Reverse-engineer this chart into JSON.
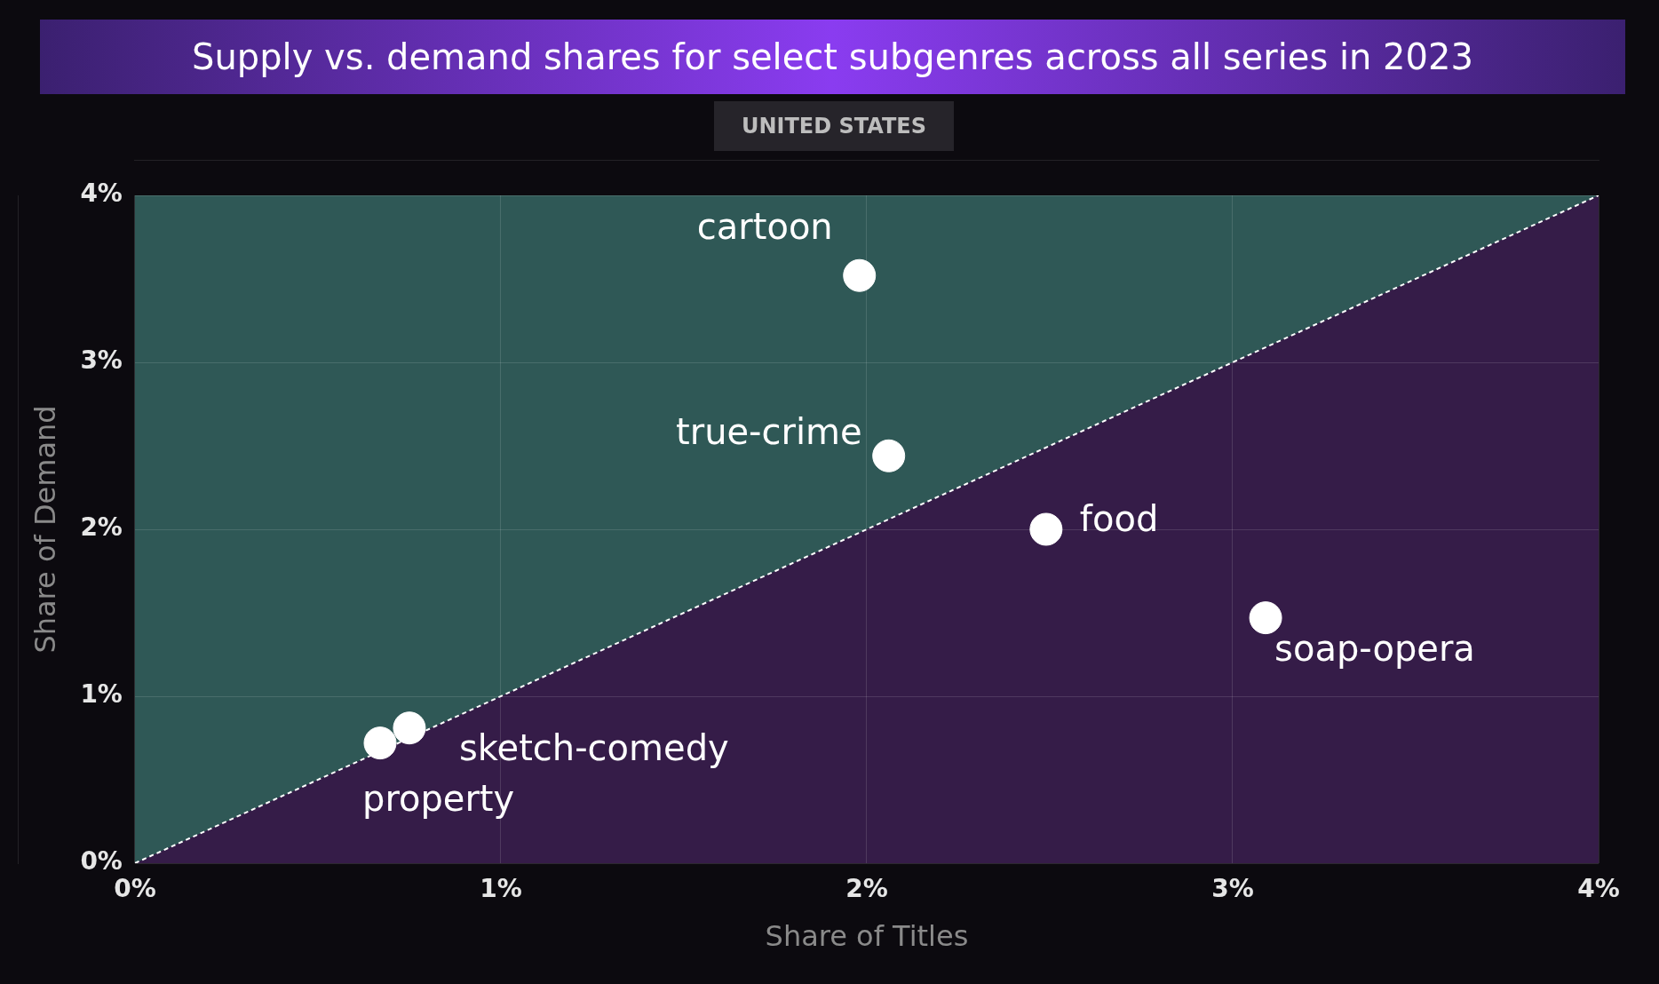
{
  "chart_data": {
    "type": "scatter",
    "title": "Supply vs. demand shares for select subgenres across all series in 2023",
    "subtitle": "UNITED STATES",
    "xlabel": "Share of Titles",
    "ylabel": "Share of Demand",
    "xlim": [
      0,
      4
    ],
    "ylim": [
      0,
      4
    ],
    "xticks": [
      {
        "value": 0,
        "label": "0%"
      },
      {
        "value": 1,
        "label": "1%"
      },
      {
        "value": 2,
        "label": "2%"
      },
      {
        "value": 3,
        "label": "3%"
      },
      {
        "value": 4,
        "label": "4%"
      }
    ],
    "yticks": [
      {
        "value": 0,
        "label": "0%"
      },
      {
        "value": 1,
        "label": "1%"
      },
      {
        "value": 2,
        "label": "2%"
      },
      {
        "value": 3,
        "label": "3%"
      },
      {
        "value": 4,
        "label": "4%"
      }
    ],
    "grid": true,
    "legend": false,
    "series": [
      {
        "type": "line",
        "color": "#ffffff",
        "line_style": "dashed",
        "x": [
          0,
          4
        ],
        "values": [
          0,
          4
        ]
      },
      {
        "type": "scatter",
        "color": "#ffffff",
        "marker": "circle",
        "x": [
          1.98,
          2.06,
          2.49,
          3.09,
          0.75,
          0.67
        ],
        "values": [
          3.52,
          2.44,
          2.0,
          1.47,
          0.81,
          0.72
        ],
        "value_labels": [
          "cartoon",
          "true-crime",
          "food",
          "soap-opera",
          "sketch-comedy",
          "property"
        ]
      }
    ]
  }
}
